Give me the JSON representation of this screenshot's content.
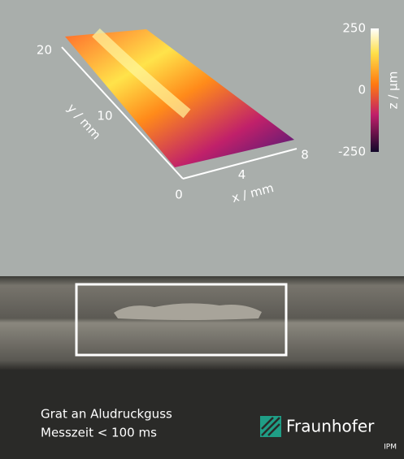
{
  "plot": {
    "y_axis": {
      "label": "y / mm",
      "ticks": [
        10,
        20
      ]
    },
    "x_axis": {
      "label": "x / mm",
      "ticks": [
        0,
        4,
        8
      ]
    },
    "colorbar": {
      "label": "z / µm",
      "ticks": [
        250,
        0,
        -250
      ]
    }
  },
  "caption": {
    "line1": "Grat an Aludruckguss",
    "line2": "Messzeit < 100 ms"
  },
  "logo": {
    "name": "Fraunhofer",
    "institute": "IPM"
  }
}
